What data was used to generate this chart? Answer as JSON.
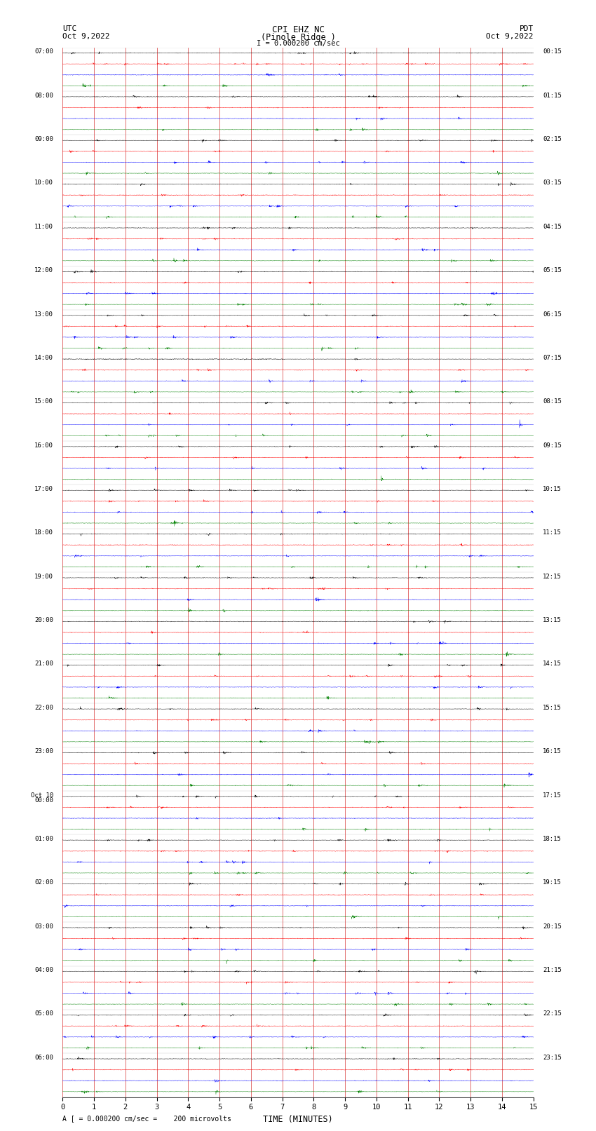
{
  "title_line1": "CPI EHZ NC",
  "title_line2": "(Pinole Ridge )",
  "scale_label": "I = 0.000200 cm/sec",
  "footer_label": "A [ = 0.000200 cm/sec =    200 microvolts",
  "utc_label": "UTC",
  "utc_date": "Oct 9,2022",
  "pdt_label": "PDT",
  "pdt_date": "Oct 9,2022",
  "xlabel": "TIME (MINUTES)",
  "left_times": [
    "07:00",
    "08:00",
    "09:00",
    "10:00",
    "11:00",
    "12:00",
    "13:00",
    "14:00",
    "15:00",
    "16:00",
    "17:00",
    "18:00",
    "19:00",
    "20:00",
    "21:00",
    "22:00",
    "23:00",
    "Oct 10\n00:00",
    "01:00",
    "02:00",
    "03:00",
    "04:00",
    "05:00",
    "06:00"
  ],
  "right_times": [
    "00:15",
    "01:15",
    "02:15",
    "03:15",
    "04:15",
    "05:15",
    "06:15",
    "07:15",
    "08:15",
    "09:15",
    "10:15",
    "11:15",
    "12:15",
    "13:15",
    "14:15",
    "15:15",
    "16:15",
    "17:15",
    "18:15",
    "19:15",
    "20:15",
    "21:15",
    "22:15",
    "23:15"
  ],
  "colors": [
    "black",
    "red",
    "blue",
    "green"
  ],
  "n_rows": 24,
  "traces_per_row": 4,
  "minutes": 15,
  "bg_color": "white",
  "amplitude_scale": 0.12,
  "seed": 12345,
  "n_samples": 2700,
  "linewidth": 0.3
}
